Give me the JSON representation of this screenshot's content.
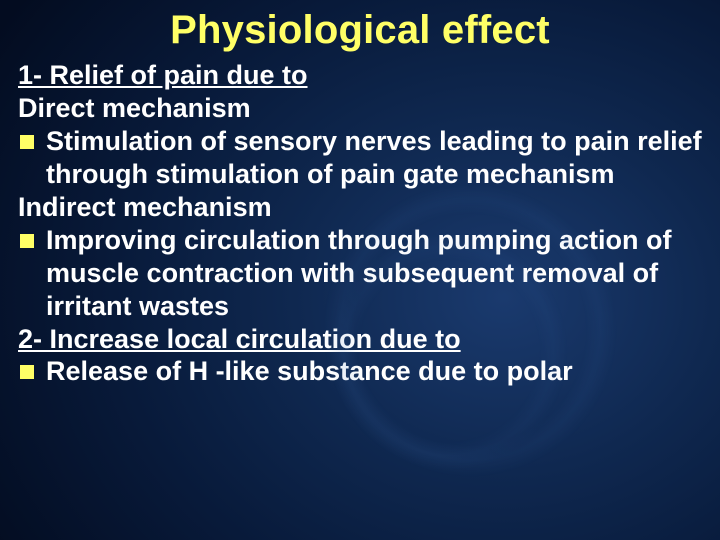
{
  "colors": {
    "title": "#ffff66",
    "body_text": "#ffffff",
    "bullet_marker": "#ffff66",
    "background_center": "#1a3a6e",
    "background_edge": "#030c20"
  },
  "typography": {
    "title_fontsize_pt": 30,
    "body_fontsize_pt": 20,
    "font_family": "Arial",
    "font_weight": "bold"
  },
  "slide": {
    "title": "Physiological effect",
    "heading1": "1- Relief of pain due to",
    "sub_direct": "Direct mechanism",
    "bullet1": "Stimulation of sensory nerves leading to pain relief through stimulation of pain gate mechanism",
    "sub_indirect": "Indirect mechanism",
    "bullet2": "Improving circulation through pumping action of muscle contraction with subsequent removal of irritant wastes",
    "heading2": "2- Increase local circulation due to",
    "bullet3": " Release of H -like substance due to polar"
  }
}
